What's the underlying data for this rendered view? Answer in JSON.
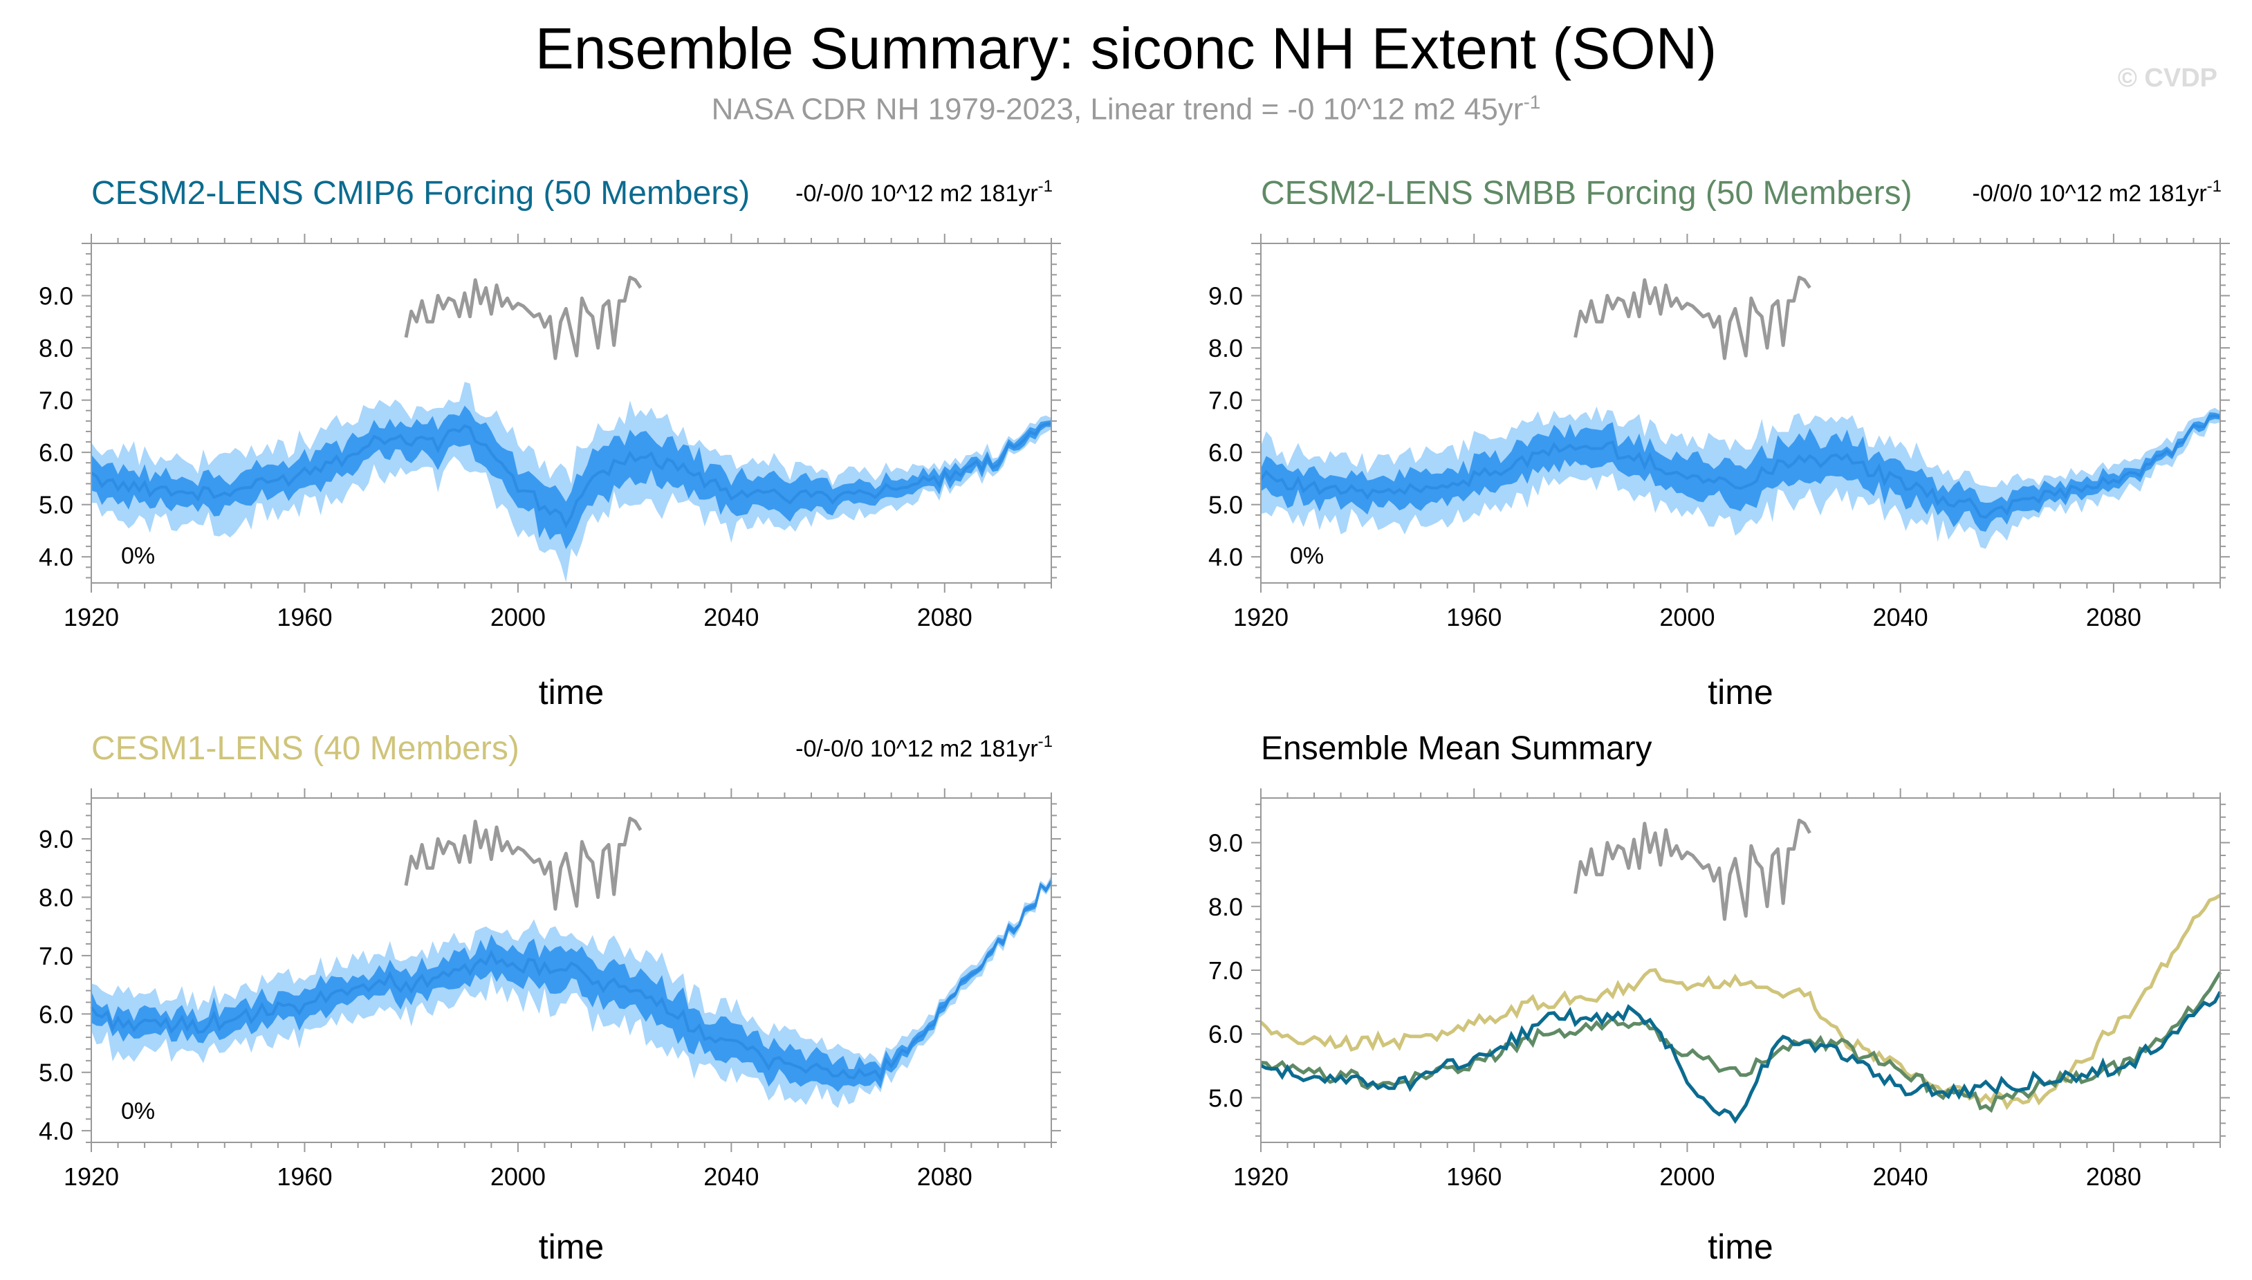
{
  "page": {
    "title": "Ensemble Summary: siconc NH Extent (SON)",
    "subtitle": "NASA CDR NH 1979-2023, Linear trend = -0 10^12 m2 45yr",
    "subtitle_sup": "-1",
    "copyright": "© CVDP"
  },
  "colors": {
    "obs": "#999999",
    "band_outer": "#a9d6fb",
    "band_inner": "#3a9af0",
    "mean": "#2c8ae0",
    "cesm2_cmip6": "#0b6b8f",
    "cesm2_smbb": "#5f8a65",
    "cesm1": "#cfc47a"
  },
  "chart_data": [
    {
      "id": "cesm2-cmip6",
      "type": "area",
      "title": "CESM2-LENS CMIP6 Forcing (50 Members)",
      "title_color": "#0b6b8f",
      "trend_label": "-0/-0/0 10^12 m2 181yr",
      "trend_sup": "-1",
      "pct_label": "0%",
      "xlabel": "time",
      "xlim": [
        1920,
        2100
      ],
      "ylim": [
        3.5,
        10.0
      ],
      "xticks": [
        1920,
        1960,
        2000,
        2040,
        2080
      ],
      "yticks": [
        "4.0",
        "5.0",
        "6.0",
        "7.0",
        "8.0",
        "9.0"
      ],
      "mean_anchors": [
        [
          1920,
          5.55
        ],
        [
          1930,
          5.3
        ],
        [
          1945,
          5.2
        ],
        [
          1960,
          5.6
        ],
        [
          1975,
          6.3
        ],
        [
          1985,
          6.2
        ],
        [
          1990,
          6.5
        ],
        [
          1996,
          5.9
        ],
        [
          2000,
          5.3
        ],
        [
          2006,
          4.85
        ],
        [
          2010,
          4.7
        ],
        [
          2013,
          5.35
        ],
        [
          2018,
          5.85
        ],
        [
          2025,
          5.9
        ],
        [
          2032,
          5.65
        ],
        [
          2040,
          5.2
        ],
        [
          2050,
          5.2
        ],
        [
          2060,
          5.2
        ],
        [
          2070,
          5.3
        ],
        [
          2080,
          5.45
        ],
        [
          2090,
          5.9
        ],
        [
          2100,
          6.65
        ]
      ],
      "inner_half_width": [
        [
          1920,
          0.28
        ],
        [
          1990,
          0.32
        ],
        [
          2000,
          0.4
        ],
        [
          2010,
          0.42
        ],
        [
          2030,
          0.4
        ],
        [
          2050,
          0.3
        ],
        [
          2070,
          0.18
        ],
        [
          2090,
          0.1
        ],
        [
          2100,
          0.07
        ]
      ],
      "outer_half_width": [
        [
          1920,
          0.6
        ],
        [
          1990,
          0.68
        ],
        [
          2000,
          0.8
        ],
        [
          2010,
          0.85
        ],
        [
          2030,
          0.75
        ],
        [
          2050,
          0.55
        ],
        [
          2070,
          0.35
        ],
        [
          2090,
          0.2
        ],
        [
          2100,
          0.14
        ]
      ],
      "series": []
    },
    {
      "id": "cesm2-smbb",
      "type": "area",
      "title": "CESM2-LENS SMBB Forcing (50 Members)",
      "title_color": "#5f8a65",
      "trend_label": "-0/0/0 10^12 m2 181yr",
      "trend_sup": "-1",
      "pct_label": "0%",
      "xlabel": "time",
      "xlim": [
        1920,
        2100
      ],
      "ylim": [
        3.5,
        10.0
      ],
      "xticks": [
        1920,
        1960,
        2000,
        2040,
        2080
      ],
      "yticks": [
        "4.0",
        "5.0",
        "6.0",
        "7.0",
        "8.0",
        "9.0"
      ],
      "mean_anchors": [
        [
          1920,
          5.6
        ],
        [
          1930,
          5.3
        ],
        [
          1945,
          5.2
        ],
        [
          1960,
          5.5
        ],
        [
          1975,
          6.05
        ],
        [
          1985,
          6.1
        ],
        [
          1990,
          5.9
        ],
        [
          2000,
          5.55
        ],
        [
          2010,
          5.35
        ],
        [
          2020,
          5.9
        ],
        [
          2030,
          5.85
        ],
        [
          2040,
          5.4
        ],
        [
          2050,
          5.05
        ],
        [
          2056,
          4.85
        ],
        [
          2065,
          5.1
        ],
        [
          2080,
          5.45
        ],
        [
          2090,
          5.95
        ],
        [
          2100,
          6.85
        ]
      ],
      "inner_half_width": [
        [
          1920,
          0.28
        ],
        [
          1990,
          0.32
        ],
        [
          2010,
          0.38
        ],
        [
          2030,
          0.4
        ],
        [
          2050,
          0.3
        ],
        [
          2070,
          0.18
        ],
        [
          2090,
          0.1
        ],
        [
          2100,
          0.07
        ]
      ],
      "outer_half_width": [
        [
          1920,
          0.6
        ],
        [
          1990,
          0.65
        ],
        [
          2010,
          0.75
        ],
        [
          2030,
          0.75
        ],
        [
          2050,
          0.55
        ],
        [
          2070,
          0.35
        ],
        [
          2090,
          0.2
        ],
        [
          2100,
          0.14
        ]
      ],
      "series": []
    },
    {
      "id": "cesm1",
      "type": "area",
      "title": "CESM1-LENS (40 Members)",
      "title_color": "#cfc47a",
      "trend_label": "-0/-0/0 10^12 m2 181yr",
      "trend_sup": "-1",
      "pct_label": "0%",
      "xlabel": "time",
      "xlim": [
        1920,
        2100
      ],
      "ylim": [
        3.8,
        9.7
      ],
      "xticks": [
        1920,
        1960,
        2000,
        2040,
        2080
      ],
      "yticks": [
        "4.0",
        "5.0",
        "6.0",
        "7.0",
        "8.0",
        "9.0"
      ],
      "mean_anchors": [
        [
          1920,
          6.1
        ],
        [
          1925,
          5.85
        ],
        [
          1940,
          5.8
        ],
        [
          1950,
          5.95
        ],
        [
          1960,
          6.15
        ],
        [
          1970,
          6.5
        ],
        [
          1980,
          6.55
        ],
        [
          1990,
          6.7
        ],
        [
          1992,
          6.95
        ],
        [
          2000,
          6.8
        ],
        [
          2010,
          6.75
        ],
        [
          2015,
          6.6
        ],
        [
          2025,
          6.2
        ],
        [
          2035,
          5.7
        ],
        [
          2045,
          5.3
        ],
        [
          2055,
          5.05
        ],
        [
          2062,
          4.95
        ],
        [
          2068,
          5.0
        ],
        [
          2075,
          5.55
        ],
        [
          2085,
          6.6
        ],
        [
          2095,
          7.7
        ],
        [
          2100,
          8.3
        ]
      ],
      "inner_half_width": [
        [
          1920,
          0.2
        ],
        [
          1990,
          0.25
        ],
        [
          2000,
          0.28
        ],
        [
          2020,
          0.35
        ],
        [
          2040,
          0.3
        ],
        [
          2060,
          0.22
        ],
        [
          2075,
          0.08
        ],
        [
          2100,
          0.04
        ]
      ],
      "outer_half_width": [
        [
          1920,
          0.45
        ],
        [
          1990,
          0.5
        ],
        [
          2000,
          0.55
        ],
        [
          2020,
          0.7
        ],
        [
          2040,
          0.6
        ],
        [
          2060,
          0.45
        ],
        [
          2075,
          0.18
        ],
        [
          2100,
          0.08
        ]
      ],
      "series": []
    },
    {
      "id": "ensemble-mean",
      "type": "line",
      "title": "Ensemble Mean Summary",
      "title_color": "#000000",
      "trend_label": "",
      "trend_sup": "",
      "pct_label": "",
      "xlabel": "time",
      "xlim": [
        1920,
        2100
      ],
      "ylim": [
        4.3,
        9.7
      ],
      "xticks": [
        1920,
        1960,
        2000,
        2040,
        2080
      ],
      "yticks": [
        "5.0",
        "6.0",
        "7.0",
        "8.0",
        "9.0"
      ],
      "mean_anchors": [],
      "inner_half_width": [],
      "outer_half_width": [],
      "series": [
        {
          "name": "CESM1-LENS",
          "color_key": "cesm1",
          "anchors": [
            [
              1920,
              6.1
            ],
            [
              1925,
              5.9
            ],
            [
              1940,
              5.85
            ],
            [
              1950,
              5.95
            ],
            [
              1960,
              6.15
            ],
            [
              1970,
              6.45
            ],
            [
              1980,
              6.55
            ],
            [
              1990,
              6.7
            ],
            [
              1992,
              7.0
            ],
            [
              2000,
              6.8
            ],
            [
              2010,
              6.8
            ],
            [
              2015,
              6.7
            ],
            [
              2022,
              6.6
            ],
            [
              2030,
              5.9
            ],
            [
              2040,
              5.4
            ],
            [
              2048,
              5.2
            ],
            [
              2055,
              5.0
            ],
            [
              2062,
              4.98
            ],
            [
              2068,
              5.05
            ],
            [
              2075,
              5.6
            ],
            [
              2085,
              6.6
            ],
            [
              2095,
              7.7
            ],
            [
              2100,
              8.3
            ]
          ]
        },
        {
          "name": "CESM2-LENS SMBB",
          "color_key": "cesm2_smbb",
          "anchors": [
            [
              1920,
              5.6
            ],
            [
              1930,
              5.35
            ],
            [
              1945,
              5.2
            ],
            [
              1960,
              5.55
            ],
            [
              1975,
              6.05
            ],
            [
              1985,
              6.15
            ],
            [
              1992,
              6.2
            ],
            [
              2000,
              5.7
            ],
            [
              2010,
              5.35
            ],
            [
              2020,
              5.9
            ],
            [
              2030,
              5.8
            ],
            [
              2040,
              5.4
            ],
            [
              2050,
              5.05
            ],
            [
              2056,
              4.85
            ],
            [
              2065,
              5.15
            ],
            [
              2080,
              5.45
            ],
            [
              2090,
              6.0
            ],
            [
              2100,
              6.85
            ]
          ]
        },
        {
          "name": "CESM2-LENS CMIP6",
          "color_key": "cesm2_cmip6",
          "anchors": [
            [
              1920,
              5.55
            ],
            [
              1930,
              5.3
            ],
            [
              1945,
              5.2
            ],
            [
              1960,
              5.6
            ],
            [
              1975,
              6.25
            ],
            [
              1985,
              6.25
            ],
            [
              1990,
              6.35
            ],
            [
              1996,
              5.9
            ],
            [
              2000,
              5.2
            ],
            [
              2006,
              4.75
            ],
            [
              2010,
              4.7
            ],
            [
              2013,
              5.3
            ],
            [
              2018,
              5.9
            ],
            [
              2025,
              5.8
            ],
            [
              2032,
              5.6
            ],
            [
              2040,
              5.15
            ],
            [
              2050,
              5.1
            ],
            [
              2060,
              5.2
            ],
            [
              2070,
              5.3
            ],
            [
              2080,
              5.45
            ],
            [
              2090,
              5.9
            ],
            [
              2100,
              6.65
            ]
          ]
        }
      ]
    }
  ],
  "obs": {
    "name": "NASA CDR NH",
    "years": [
      1979,
      1980,
      1981,
      1982,
      1983,
      1984,
      1985,
      1986,
      1987,
      1988,
      1989,
      1990,
      1991,
      1992,
      1993,
      1994,
      1995,
      1996,
      1997,
      1998,
      1999,
      2000,
      2001,
      2002,
      2003,
      2004,
      2005,
      2006,
      2007,
      2008,
      2009,
      2010,
      2011,
      2012,
      2013,
      2014,
      2015,
      2016,
      2017,
      2018,
      2019,
      2020,
      2021,
      2022,
      2023
    ],
    "values": [
      8.2,
      8.7,
      8.5,
      8.9,
      8.5,
      8.5,
      9.0,
      8.75,
      8.95,
      8.9,
      8.6,
      9.05,
      8.6,
      9.3,
      8.85,
      9.15,
      8.65,
      9.2,
      8.8,
      8.95,
      8.75,
      8.85,
      8.8,
      8.7,
      8.6,
      8.65,
      8.4,
      8.6,
      7.8,
      8.5,
      8.75,
      8.3,
      7.85,
      8.95,
      8.7,
      8.6,
      8.0,
      8.8,
      8.9,
      8.05,
      8.9,
      8.9,
      9.35,
      9.3,
      9.15
    ]
  }
}
